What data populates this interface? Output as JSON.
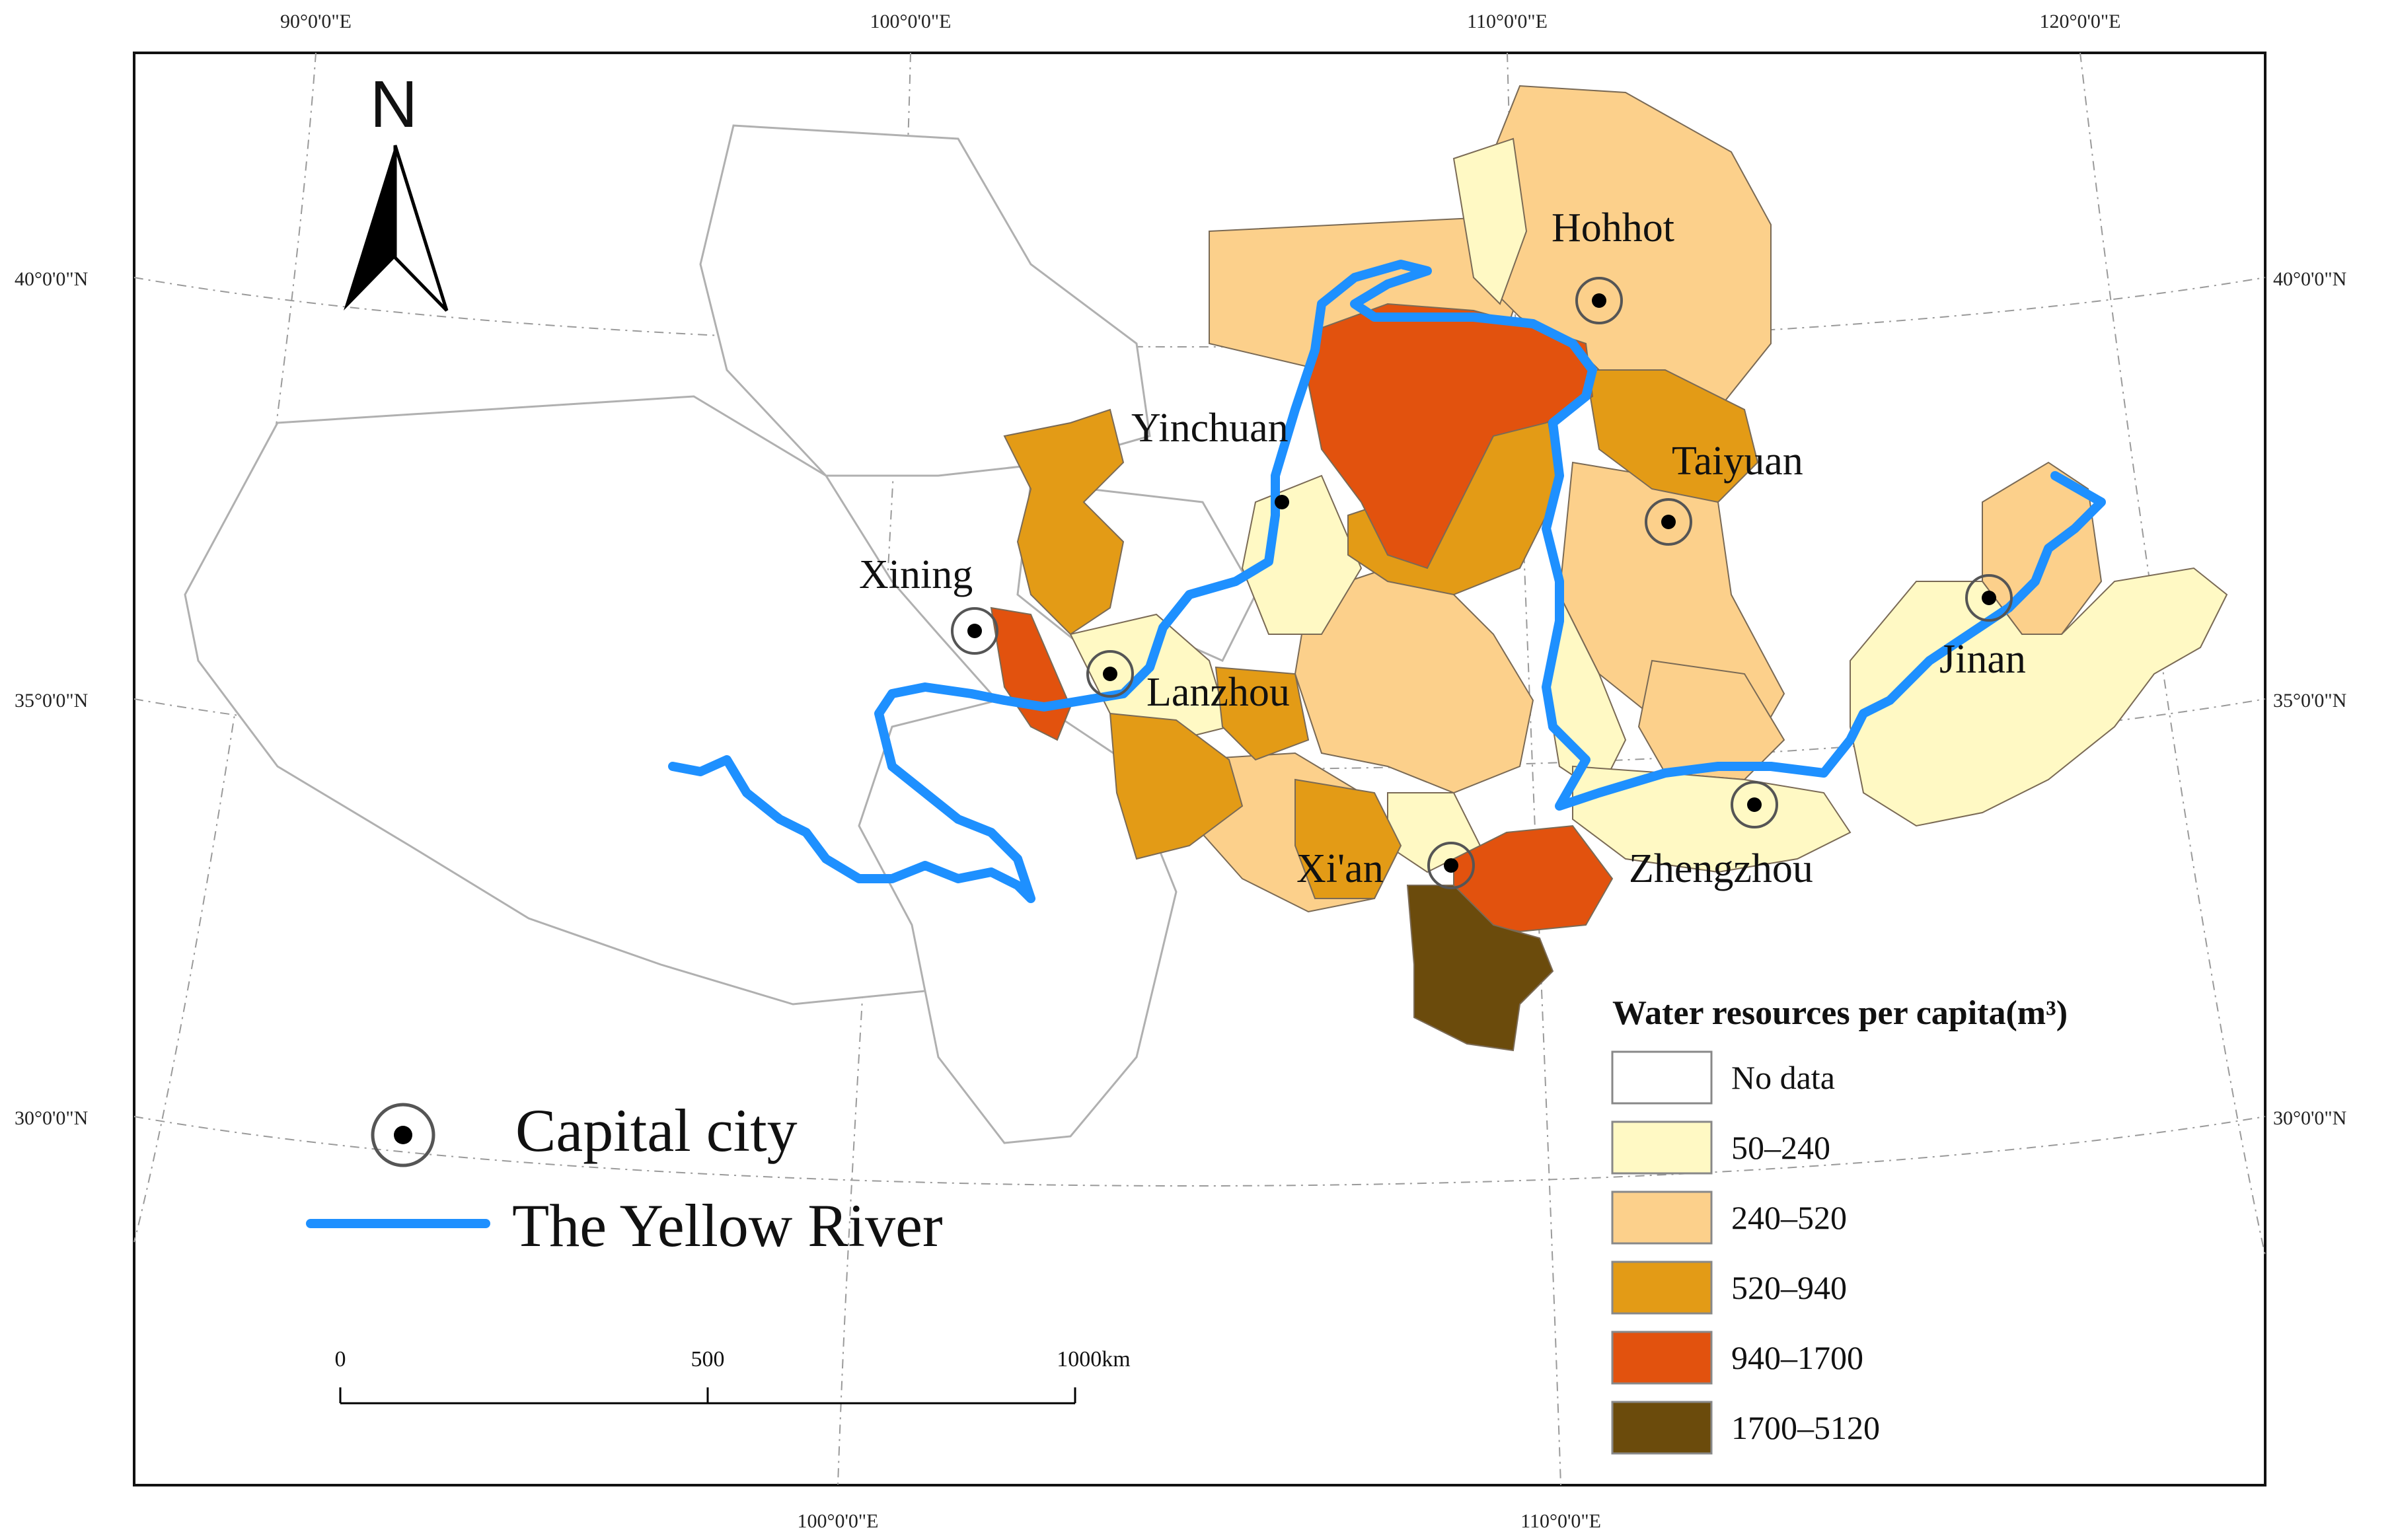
{
  "map": {
    "graticule": {
      "top_lon": [
        "90°0'0\"E",
        "100°0'0\"E",
        "110°0'0\"E",
        "120°0'0\"E"
      ],
      "bottom_lon": [
        "100°0'0\"E",
        "110°0'0\"E"
      ],
      "left_lat": [
        "40°0'0\"N",
        "35°0'0\"N",
        "30°0'0\"N"
      ],
      "right_lat": [
        "40°0'0\"N",
        "35°0'0\"N",
        "30°0'0\"N"
      ]
    },
    "north_label": "N",
    "cities": [
      {
        "name": "Hohhot"
      },
      {
        "name": "Yinchuan"
      },
      {
        "name": "Taiyuan"
      },
      {
        "name": "Xining"
      },
      {
        "name": "Lanzhou"
      },
      {
        "name": "Jinan"
      },
      {
        "name": "Xi'an"
      },
      {
        "name": "Zhengzhou"
      }
    ],
    "symbol_legend": {
      "capital": "Capital city",
      "river": "The Yellow River"
    },
    "river_color": "#1e90ff",
    "legend": {
      "title": "Water resources per capita(m³)",
      "classes": [
        {
          "label": "No data",
          "color": "#ffffff"
        },
        {
          "label": "50–240",
          "color": "#fff9c4"
        },
        {
          "label": "240–520",
          "color": "#fcd08b"
        },
        {
          "label": "520–940",
          "color": "#e39b16"
        },
        {
          "label": "940–1700",
          "color": "#e2520e"
        },
        {
          "label": "1700–5120",
          "color": "#6b4b0c"
        }
      ]
    },
    "scale_bar": {
      "labels": [
        "0",
        "500",
        "1000km"
      ]
    }
  }
}
